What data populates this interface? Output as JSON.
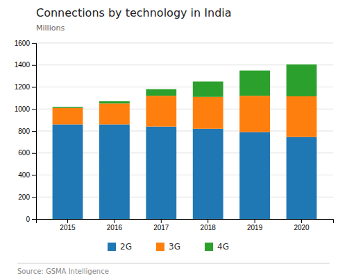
{
  "chart_data": {
    "type": "bar",
    "stacked": true,
    "title": "Connections by technology in India",
    "ylabel": "Millions",
    "source": "Source: GSMA Intelligence",
    "categories": [
      "2015",
      "2016",
      "2017",
      "2018",
      "2019",
      "2020"
    ],
    "series": [
      {
        "name": "2G",
        "values": [
          860,
          860,
          840,
          820,
          790,
          745
        ]
      },
      {
        "name": "3G",
        "values": [
          150,
          190,
          280,
          290,
          330,
          370
        ]
      },
      {
        "name": "4G",
        "values": [
          10,
          20,
          60,
          140,
          230,
          290
        ]
      }
    ],
    "ylim": [
      0,
      1600
    ],
    "yticks": [
      0,
      200,
      400,
      600,
      800,
      1000,
      1200,
      1400,
      1600
    ],
    "grid": true,
    "legend": "bottom"
  }
}
